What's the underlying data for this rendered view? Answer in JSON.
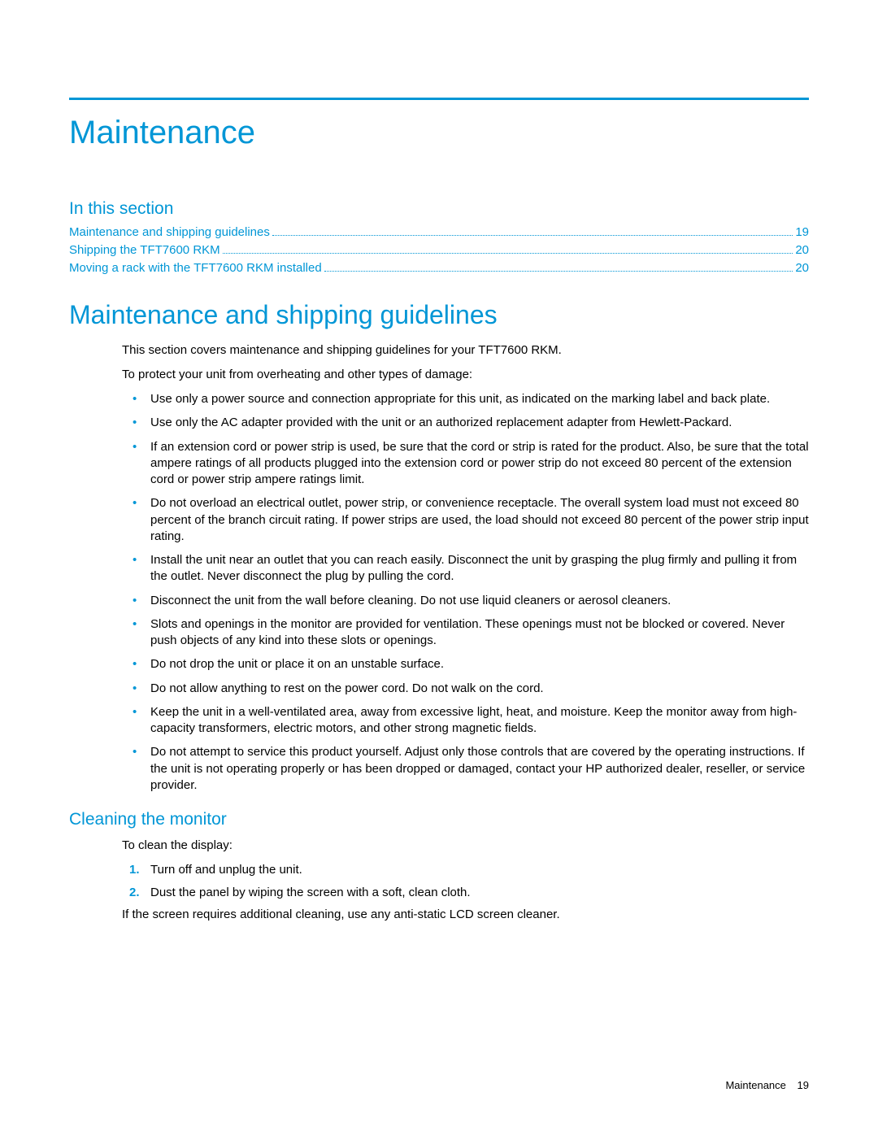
{
  "colors": {
    "accent": "#0096d6",
    "text": "#000000",
    "background": "#ffffff"
  },
  "typography": {
    "h1_size_pt": 30,
    "h1b_size_pt": 24,
    "h2_size_pt": 16,
    "h3_size_pt": 16,
    "body_size_pt": 11,
    "footer_size_pt": 10,
    "font_family": "Segoe UI / Futura-like sans"
  },
  "page": {
    "title": "Maintenance",
    "section_label": "In this section",
    "toc": [
      {
        "label": "Maintenance and shipping guidelines",
        "page": "19"
      },
      {
        "label": "Shipping the TFT7600 RKM",
        "page": "20"
      },
      {
        "label": "Moving a rack with the TFT7600 RKM installed",
        "page": "20"
      }
    ],
    "h1b": "Maintenance and shipping guidelines",
    "intro": [
      "This section covers maintenance and shipping guidelines for your TFT7600 RKM.",
      "To protect your unit from overheating and other types of damage:"
    ],
    "bullets": [
      "Use only a power source and connection appropriate for this unit, as indicated on the marking label and back plate.",
      "Use only the AC adapter provided with the unit or an authorized replacement adapter from Hewlett-Packard.",
      "If an extension cord or power strip is used, be sure that the cord or strip is rated for the product. Also, be sure that the total ampere ratings of all products plugged into the extension cord or power strip do not exceed 80 percent of the extension cord or power strip ampere ratings limit.",
      "Do not overload an electrical outlet, power strip, or convenience receptacle. The overall system load must not exceed 80 percent of the branch circuit rating. If power strips are used, the load should not exceed 80 percent of the power strip input rating.",
      "Install the unit near an outlet that you can reach easily. Disconnect the unit by grasping the plug firmly and pulling it from the outlet. Never disconnect the plug by pulling the cord.",
      "Disconnect the unit from the wall before cleaning. Do not use liquid cleaners or aerosol cleaners.",
      "Slots and openings in the monitor are provided for ventilation. These openings must not be blocked or covered. Never push objects of any kind into these slots or openings.",
      "Do not drop the unit or place it on an unstable surface.",
      "Do not allow anything to rest on the power cord. Do not walk on the cord.",
      "Keep the unit in a well-ventilated area, away from excessive light, heat, and moisture. Keep the monitor away from high-capacity transformers, electric motors, and other strong magnetic fields.",
      "Do not attempt to service this product yourself. Adjust only those controls that are covered by the operating instructions. If the unit is not operating properly or has been dropped or damaged, contact your HP authorized dealer, reseller, or service provider."
    ],
    "h3": "Cleaning the monitor",
    "clean_intro": "To clean the display:",
    "steps": [
      "Turn off and unplug the unit.",
      "Dust the panel by wiping the screen with a soft, clean cloth."
    ],
    "clean_outro": "If the screen requires additional cleaning, use any anti-static LCD screen cleaner.",
    "footer": {
      "name": "Maintenance",
      "page": "19"
    }
  }
}
